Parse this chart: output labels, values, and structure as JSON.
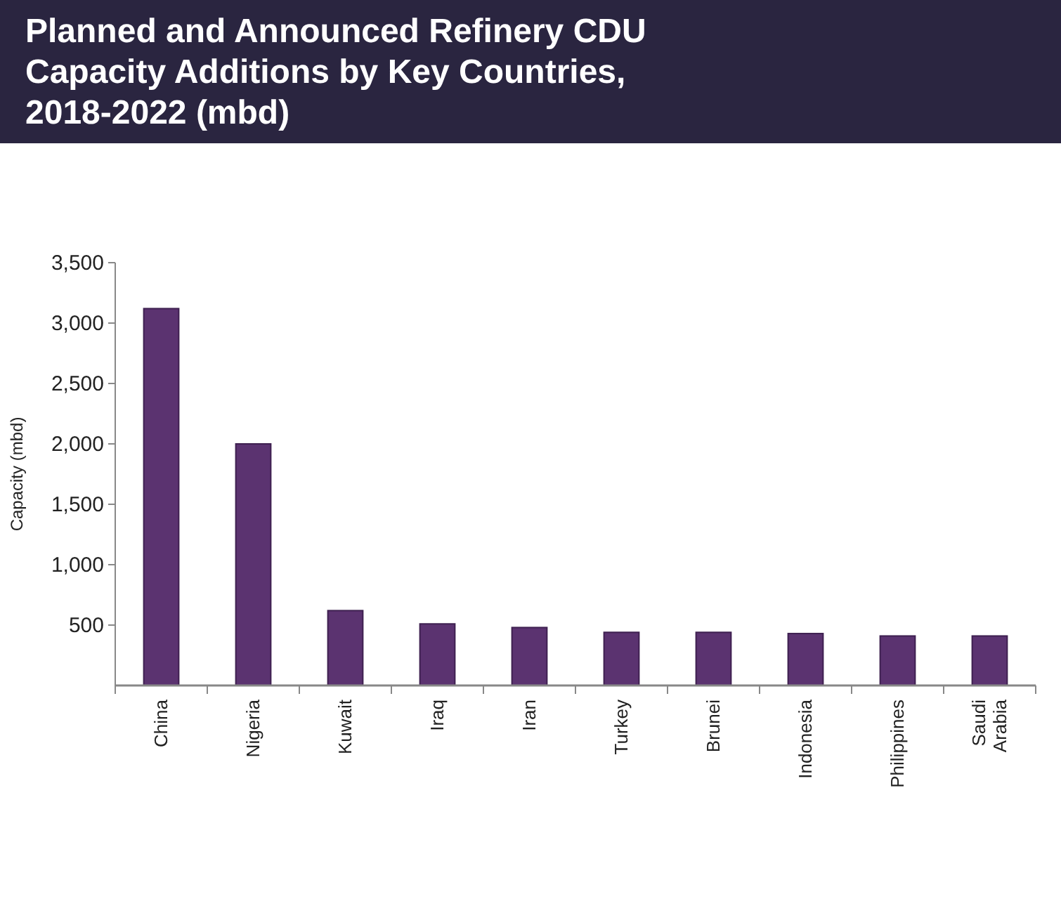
{
  "chart_data": {
    "type": "bar",
    "title": "Planned and Announced Refinery CDU Capacity Additions by Key Countries, 2018-2022 (mbd)",
    "ylabel": "Capacity (mbd)",
    "categories": [
      "China",
      "Nigeria",
      "Kuwait",
      "Iraq",
      "Iran",
      "Turkey",
      "Brunei",
      "Indonesia",
      "Philippines",
      "Saudi Arabia"
    ],
    "values": [
      3120,
      2000,
      620,
      510,
      480,
      440,
      440,
      430,
      410,
      410
    ],
    "color": "#5b3370",
    "ylim": [
      0,
      3500
    ],
    "yticks": [
      {
        "value": 500,
        "label": "500"
      },
      {
        "value": 1000,
        "label": "1,000"
      },
      {
        "value": 1500,
        "label": "1,500"
      },
      {
        "value": 2000,
        "label": "2,000"
      },
      {
        "value": 2500,
        "label": "2,500"
      },
      {
        "value": 3000,
        "label": "3,000"
      },
      {
        "value": 3500,
        "label": "3,500"
      }
    ],
    "grid": false
  }
}
